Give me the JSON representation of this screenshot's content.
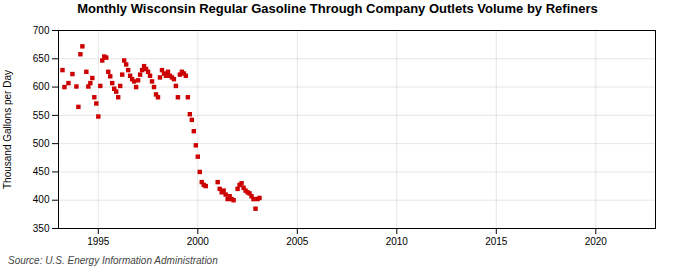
{
  "chart_data": {
    "type": "scatter",
    "title": "Monthly Wisconsin Regular Gasoline Through Company Outlets Volume by Refiners",
    "ylabel": "Thousand Gallons per Day",
    "source": "Source: U.S. Energy Information Administration",
    "color": "#cc0000",
    "marker": "square",
    "grid": true,
    "xlim": [
      1993.0,
      2023.0
    ],
    "ylim": [
      350,
      700
    ],
    "xticks": [
      1995,
      2000,
      2005,
      2010,
      2015,
      2020
    ],
    "yticks": [
      350,
      400,
      450,
      500,
      550,
      600,
      650,
      700
    ],
    "x": [
      1993.2,
      1993.3,
      1993.5,
      1993.7,
      1993.9,
      1994.0,
      1994.1,
      1994.2,
      1994.4,
      1994.5,
      1994.6,
      1994.7,
      1994.8,
      1994.9,
      1995.0,
      1995.1,
      1995.2,
      1995.3,
      1995.4,
      1995.5,
      1995.6,
      1995.7,
      1995.8,
      1995.9,
      1996.0,
      1996.1,
      1996.2,
      1996.3,
      1996.4,
      1996.5,
      1996.6,
      1996.7,
      1996.8,
      1996.9,
      1997.0,
      1997.1,
      1997.2,
      1997.3,
      1997.4,
      1997.5,
      1997.6,
      1997.7,
      1997.8,
      1997.9,
      1998.0,
      1998.1,
      1998.2,
      1998.3,
      1998.4,
      1998.5,
      1998.6,
      1998.7,
      1998.8,
      1998.9,
      1999.0,
      1999.1,
      1999.2,
      1999.3,
      1999.4,
      1999.5,
      1999.6,
      1999.7,
      1999.8,
      1999.9,
      2000.0,
      2000.1,
      2000.2,
      2000.3,
      2000.4,
      2001.0,
      2001.1,
      2001.2,
      2001.3,
      2001.4,
      2001.5,
      2001.6,
      2001.7,
      2001.8,
      2002.0,
      2002.1,
      2002.2,
      2002.3,
      2002.4,
      2002.5,
      2002.6,
      2002.7,
      2002.8,
      2002.9,
      2003.0,
      2003.1
    ],
    "values": [
      630,
      600,
      607,
      623,
      601,
      565,
      658,
      672,
      627,
      601,
      607,
      616,
      582,
      571,
      548,
      602,
      647,
      654,
      652,
      627,
      619,
      607,
      597,
      592,
      582,
      602,
      622,
      647,
      640,
      630,
      620,
      614,
      610,
      600,
      612,
      622,
      630,
      637,
      632,
      627,
      620,
      610,
      600,
      587,
      582,
      617,
      630,
      624,
      620,
      627,
      620,
      617,
      614,
      602,
      582,
      622,
      627,
      624,
      620,
      582,
      552,
      542,
      522,
      497,
      477,
      450,
      432,
      427,
      425,
      432,
      420,
      414,
      417,
      410,
      402,
      407,
      402,
      400,
      420,
      427,
      430,
      422,
      417,
      414,
      412,
      407,
      402,
      385,
      402,
      404
    ]
  }
}
